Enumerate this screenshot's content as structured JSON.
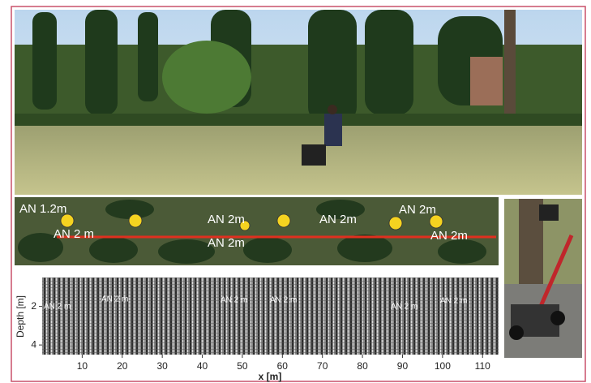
{
  "aerial": {
    "labels": [
      "AN 1.2m",
      "AN 2 m",
      "AN 2m",
      "AN 2m",
      "AN 2m",
      "AN 2m",
      "AN 2m"
    ]
  },
  "radargram": {
    "y_label": "Depth [m]",
    "x_label": "x [m]",
    "xlim": [
      0,
      114
    ],
    "xticks": [
      10,
      20,
      30,
      40,
      50,
      60,
      70,
      80,
      90,
      100,
      110
    ],
    "ylim": [
      0.5,
      4.5
    ],
    "yticks": [
      2,
      4
    ],
    "annotations": [
      "AN 2 m",
      "AN 2 m",
      "AN 2 m",
      "AN 2 m",
      "AN 2 m",
      "AN 2 m"
    ]
  }
}
